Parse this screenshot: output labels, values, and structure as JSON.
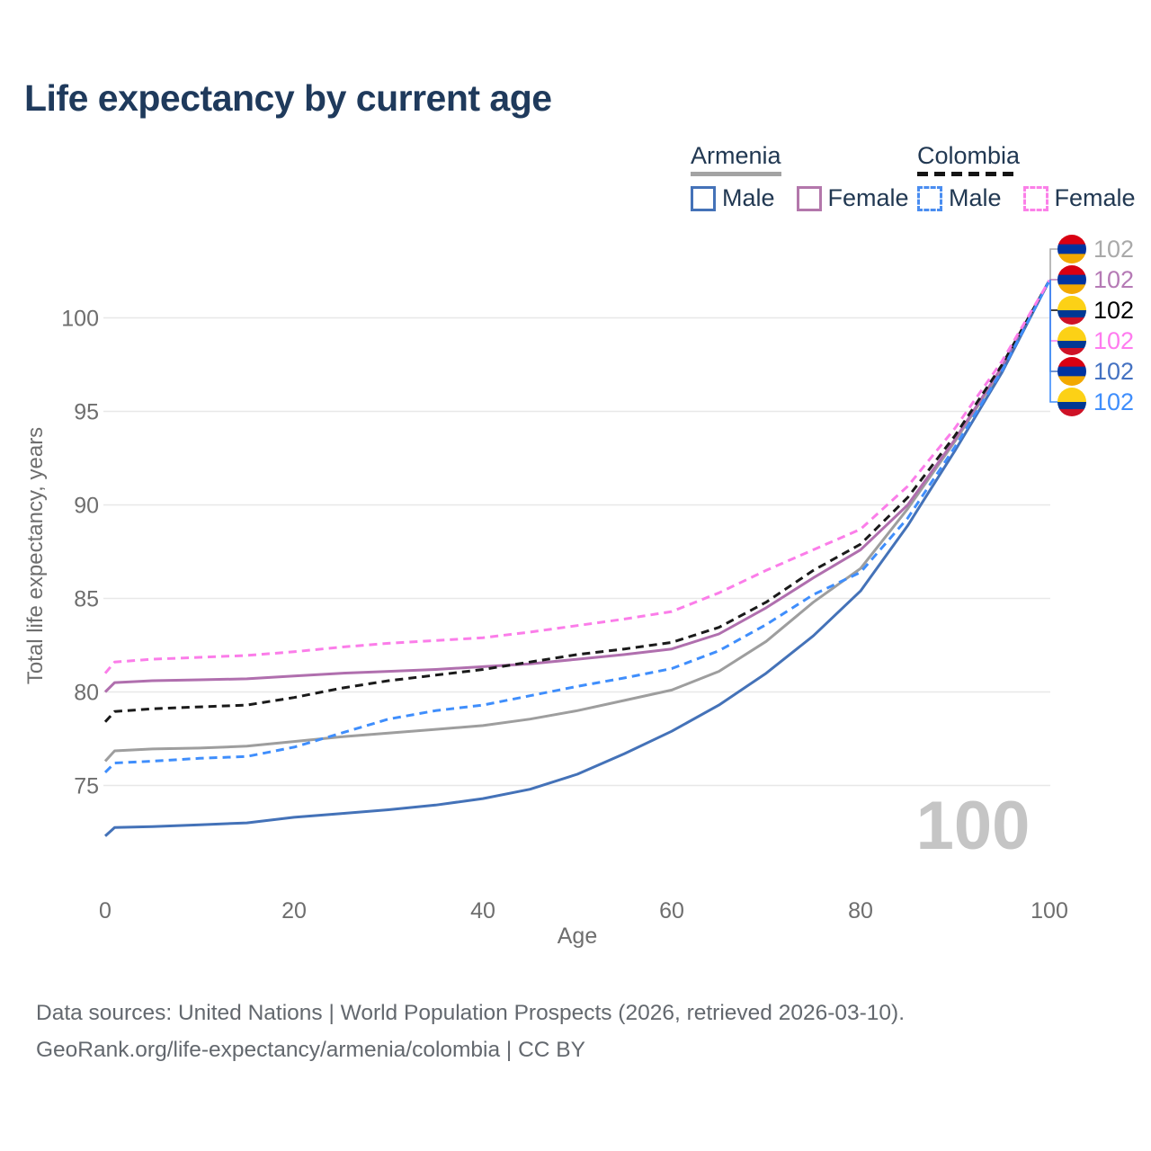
{
  "page": {
    "title": "Life expectancy by current age",
    "watermark": "100",
    "footer_line1": "Data sources: United Nations | World Population Prospects (2026, retrieved 2026-03-10).",
    "footer_line2": "GeoRank.org/life-expectancy/armenia/colombia | CC BY"
  },
  "legend": {
    "groups": [
      {
        "country": "Armenia",
        "line_style": "solid",
        "underline_color": "#a3a3a3",
        "items": [
          {
            "label": "Male",
            "color": "#4472b8",
            "dashed": false
          },
          {
            "label": "Female",
            "color": "#b377ab",
            "dashed": false
          }
        ]
      },
      {
        "country": "Colombia",
        "line_style": "dashed",
        "underline_color": "#141414",
        "items": [
          {
            "label": "Male",
            "color": "#4a8df0",
            "dashed": true
          },
          {
            "label": "Female",
            "color": "#fb80e8",
            "dashed": true
          }
        ]
      }
    ]
  },
  "chart_data": {
    "type": "line",
    "title": "Life expectancy by current age",
    "xlabel": "Age",
    "ylabel": "Total life expectancy, years",
    "x_ticks": [
      0,
      20,
      40,
      60,
      80,
      100
    ],
    "y_ticks": [
      75,
      80,
      85,
      90,
      95,
      100
    ],
    "xlim": [
      0,
      100
    ],
    "ylim": [
      72,
      103
    ],
    "grid": "horizontal",
    "x": [
      0,
      1,
      5,
      10,
      15,
      20,
      25,
      30,
      35,
      40,
      45,
      50,
      55,
      60,
      65,
      70,
      75,
      80,
      85,
      90,
      95,
      100
    ],
    "series": [
      {
        "id": "armenia-total",
        "name": "Armenia — Total",
        "country": "Armenia",
        "sex": "Total",
        "color": "#9e9e9e",
        "dashed": false,
        "values": [
          76.3,
          76.85,
          76.95,
          77.0,
          77.1,
          77.35,
          77.6,
          77.8,
          78.0,
          78.2,
          78.55,
          79.0,
          79.55,
          80.1,
          81.1,
          82.7,
          84.8,
          86.6,
          89.8,
          93.4,
          97.3,
          102
        ],
        "end_label": "102"
      },
      {
        "id": "armenia-female",
        "name": "Armenia — Female",
        "country": "Armenia",
        "sex": "Female",
        "color": "#b06fae",
        "dashed": false,
        "values": [
          80.0,
          80.5,
          80.6,
          80.65,
          80.7,
          80.85,
          81.0,
          81.1,
          81.2,
          81.35,
          81.5,
          81.75,
          82.0,
          82.3,
          83.1,
          84.5,
          86.1,
          87.6,
          90.0,
          93.5,
          97.4,
          102
        ],
        "end_label": "102"
      },
      {
        "id": "armenia-male",
        "name": "Armenia — Male",
        "country": "Armenia",
        "sex": "Male",
        "color": "#4472b8",
        "dashed": false,
        "values": [
          72.3,
          72.75,
          72.8,
          72.9,
          73.0,
          73.3,
          73.5,
          73.7,
          73.95,
          74.3,
          74.8,
          75.6,
          76.7,
          77.9,
          79.3,
          81.0,
          83.0,
          85.4,
          88.9,
          92.9,
          97.1,
          102
        ],
        "end_label": "102"
      },
      {
        "id": "colombia-total",
        "name": "Colombia — Total",
        "country": "Colombia",
        "sex": "Total",
        "color": "#1a1a1a",
        "dashed": true,
        "values": [
          78.4,
          78.95,
          79.1,
          79.2,
          79.3,
          79.7,
          80.2,
          80.6,
          80.9,
          81.2,
          81.6,
          82.0,
          82.3,
          82.65,
          83.45,
          84.8,
          86.5,
          87.9,
          90.4,
          93.7,
          97.5,
          102
        ],
        "end_label": "102"
      },
      {
        "id": "colombia-male",
        "name": "Colombia — Male",
        "country": "Colombia",
        "sex": "Male",
        "color": "#3f8efc",
        "dashed": true,
        "values": [
          75.7,
          76.2,
          76.3,
          76.45,
          76.55,
          77.05,
          77.8,
          78.55,
          79.0,
          79.3,
          79.8,
          80.3,
          80.75,
          81.25,
          82.2,
          83.6,
          85.2,
          86.4,
          89.3,
          93.1,
          97.2,
          102
        ],
        "end_label": "102"
      },
      {
        "id": "colombia-female",
        "name": "Colombia — Female",
        "country": "Colombia",
        "sex": "Female",
        "color": "#fb7de9",
        "dashed": true,
        "values": [
          81.0,
          81.6,
          81.75,
          81.85,
          81.95,
          82.15,
          82.4,
          82.6,
          82.75,
          82.9,
          83.2,
          83.55,
          83.9,
          84.3,
          85.3,
          86.5,
          87.6,
          88.7,
          91.0,
          94.1,
          97.7,
          102
        ],
        "end_label": "102"
      }
    ],
    "end_labels": [
      {
        "series": "armenia-total",
        "flag": "armenia",
        "color": "#a9a9a9",
        "value": "102"
      },
      {
        "series": "armenia-female",
        "flag": "armenia",
        "color": "#b57ab5",
        "value": "102"
      },
      {
        "series": "colombia-total",
        "flag": "colombia",
        "color": "#000000",
        "value": "102"
      },
      {
        "series": "colombia-female",
        "flag": "colombia",
        "color": "#ff7bef",
        "value": "102"
      },
      {
        "series": "armenia-male",
        "flag": "armenia",
        "color": "#4472c2",
        "value": "102"
      },
      {
        "series": "colombia-male",
        "flag": "colombia",
        "color": "#3f8efc",
        "value": "102"
      }
    ],
    "flags": {
      "armenia": {
        "stripes": [
          "#D90012",
          "#0033A0",
          "#F2A800"
        ],
        "fractions": [
          0.3334,
          0.3333,
          0.3333
        ]
      },
      "colombia": {
        "stripes": [
          "#FCD116",
          "#003893",
          "#CE1126"
        ],
        "fractions": [
          0.5,
          0.25,
          0.25
        ]
      }
    },
    "style": {
      "grid_color": "#e8e8e8",
      "tick_color": "#6e6e6e",
      "watermark_color": "#c5c5c5"
    }
  }
}
